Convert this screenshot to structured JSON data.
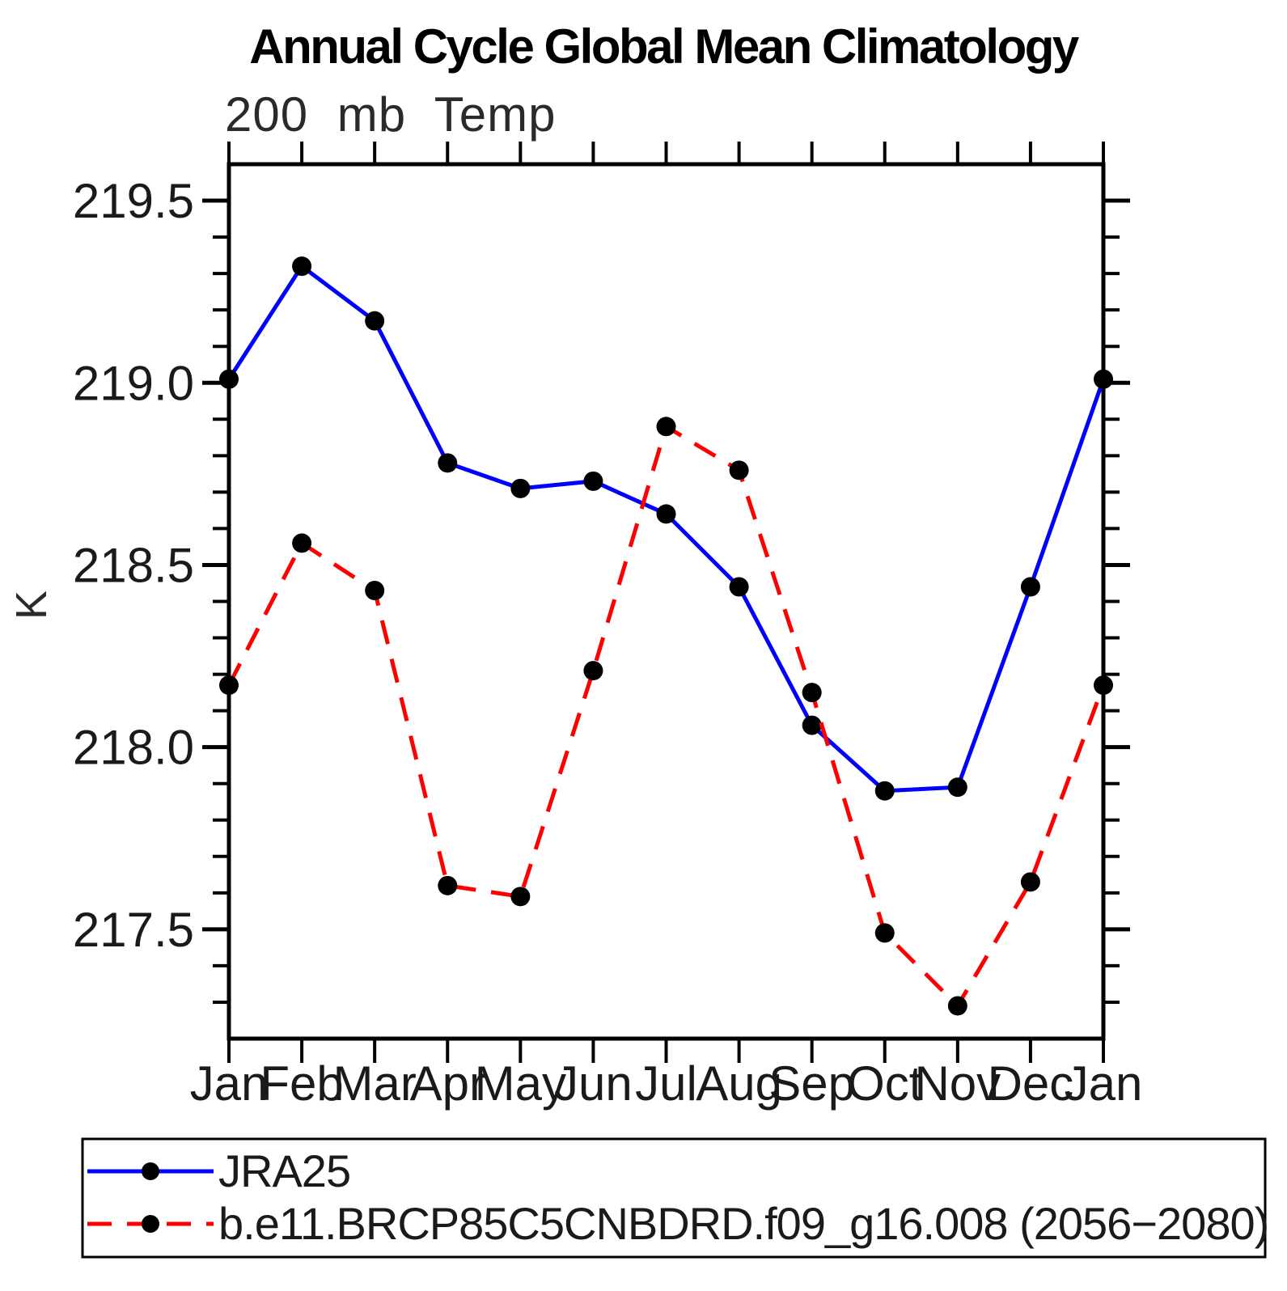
{
  "title": "Annual Cycle Global Mean Climatology",
  "subtitle": "200 mb Temp",
  "ylabel": "K",
  "chart_data": {
    "type": "line",
    "categories": [
      "Jan",
      "Feb",
      "Mar",
      "Apr",
      "May",
      "Jun",
      "Jul",
      "Aug",
      "Sep",
      "Oct",
      "Nov",
      "Dec",
      "Jan"
    ],
    "series": [
      {
        "name": "JRA25",
        "color": "#0000ff",
        "line_style": "solid",
        "marker": "filled-circle",
        "marker_color": "#000000",
        "values": [
          219.01,
          219.32,
          219.17,
          218.78,
          218.71,
          218.73,
          218.64,
          218.44,
          218.06,
          217.88,
          217.89,
          218.44,
          219.01
        ]
      },
      {
        "name": "b.e11.BRCP85C5CNBDRD.f09_g16.008 (2056−2080)",
        "color": "#ff0000",
        "line_style": "dashed",
        "marker": "filled-circle",
        "marker_color": "#000000",
        "values": [
          218.17,
          218.56,
          218.43,
          217.62,
          217.59,
          218.21,
          218.88,
          218.76,
          218.15,
          217.49,
          217.29,
          217.63,
          218.17
        ]
      }
    ],
    "ylim": [
      217.2,
      219.6
    ],
    "yticks_major": [
      217.5,
      218.0,
      218.5,
      219.0,
      219.5
    ],
    "ytick_labels": [
      "217.5",
      "218.0",
      "218.5",
      "219.0",
      "219.5"
    ],
    "ytick_minor_step": 0.1,
    "grid": false,
    "legend_position": "bottom",
    "axis_color": "#000000"
  }
}
